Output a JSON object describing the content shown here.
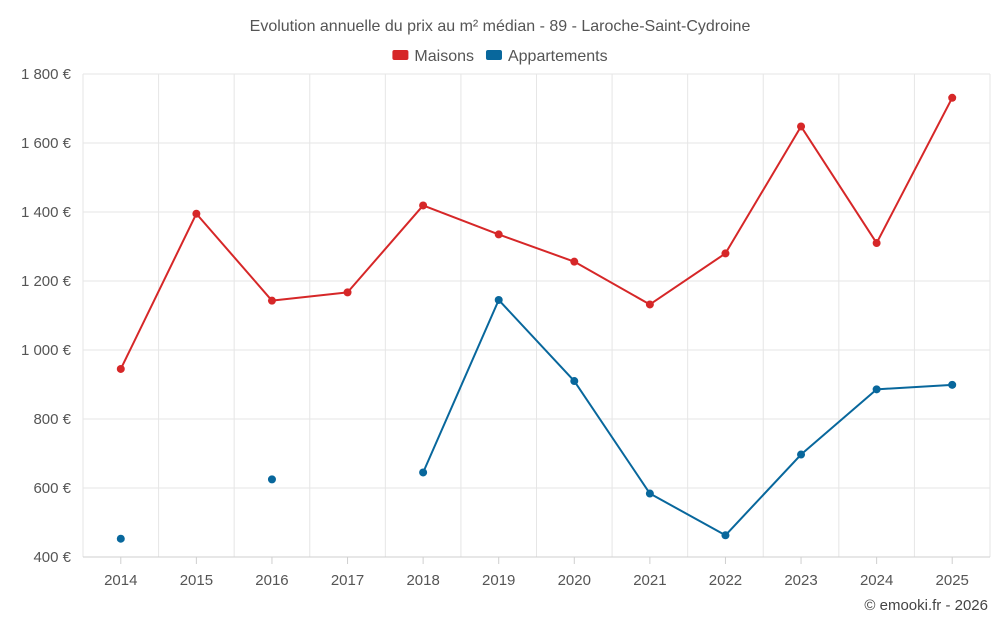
{
  "chart_data": {
    "type": "line",
    "title": "Evolution annuelle du prix au m² médian - 89 - Laroche-Saint-Cydroine",
    "categories": [
      "2014",
      "2015",
      "2016",
      "2017",
      "2018",
      "2019",
      "2020",
      "2021",
      "2022",
      "2023",
      "2024",
      "2025"
    ],
    "ylim": [
      400,
      1800
    ],
    "yticks": [
      400,
      600,
      800,
      1000,
      1200,
      1400,
      1600,
      1800
    ],
    "ytick_labels": [
      "400 €",
      "600 €",
      "800 €",
      "1 000 €",
      "1 200 €",
      "1 400 €",
      "1 600 €",
      "1 800 €"
    ],
    "legend_position": "top-center",
    "grid": true,
    "series": [
      {
        "name": "Maisons",
        "color": "#d62728",
        "values": [
          945,
          1395,
          1143,
          1167,
          1419,
          1335,
          1256,
          1132,
          1280,
          1648,
          1310,
          1731
        ]
      },
      {
        "name": "Appartements",
        "color": "#08679c",
        "values": [
          453,
          null,
          625,
          null,
          645,
          1145,
          910,
          584,
          463,
          697,
          886,
          899
        ]
      }
    ]
  },
  "credit": "© emooki.fr - 2026"
}
